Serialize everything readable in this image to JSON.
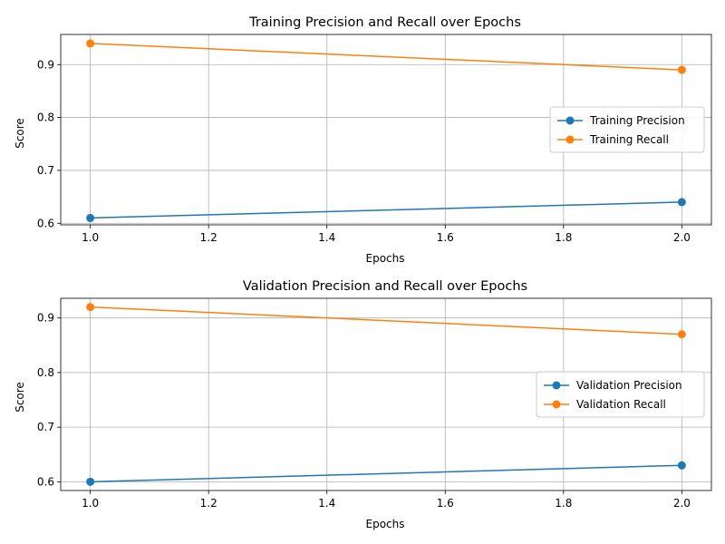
{
  "chart_data": [
    {
      "type": "line",
      "title": "Training Precision and Recall over Epochs",
      "xlabel": "Epochs",
      "ylabel": "Score",
      "xlim": [
        0.95,
        2.05
      ],
      "ylim": [
        0.597,
        0.957
      ],
      "xticks": [
        1.0,
        1.2,
        1.4,
        1.6,
        1.8,
        2.0
      ],
      "xtick_labels": [
        "1.0",
        "1.2",
        "1.4",
        "1.6",
        "1.8",
        "2.0"
      ],
      "yticks": [
        0.6,
        0.7,
        0.8,
        0.9
      ],
      "ytick_labels": [
        "0.6",
        "0.7",
        "0.8",
        "0.9"
      ],
      "x": [
        1.0,
        2.0
      ],
      "grid": true,
      "legend_position": "center-right",
      "series": [
        {
          "name": "Training Precision",
          "values": [
            0.61,
            0.64
          ],
          "color": "#1f77b4",
          "marker": "circle"
        },
        {
          "name": "Training Recall",
          "values": [
            0.94,
            0.89
          ],
          "color": "#ff7f0e",
          "marker": "circle"
        }
      ]
    },
    {
      "type": "line",
      "title": "Validation Precision and Recall over Epochs",
      "xlabel": "Epochs",
      "ylabel": "Score",
      "xlim": [
        0.95,
        2.05
      ],
      "ylim": [
        0.584,
        0.936
      ],
      "xticks": [
        1.0,
        1.2,
        1.4,
        1.6,
        1.8,
        2.0
      ],
      "xtick_labels": [
        "1.0",
        "1.2",
        "1.4",
        "1.6",
        "1.8",
        "2.0"
      ],
      "yticks": [
        0.6,
        0.7,
        0.8,
        0.9
      ],
      "ytick_labels": [
        "0.6",
        "0.7",
        "0.8",
        "0.9"
      ],
      "x": [
        1.0,
        2.0
      ],
      "grid": true,
      "legend_position": "center-right",
      "series": [
        {
          "name": "Validation Precision",
          "values": [
            0.6,
            0.63
          ],
          "color": "#1f77b4",
          "marker": "circle"
        },
        {
          "name": "Validation Recall",
          "values": [
            0.92,
            0.87
          ],
          "color": "#ff7f0e",
          "marker": "circle"
        }
      ]
    }
  ]
}
